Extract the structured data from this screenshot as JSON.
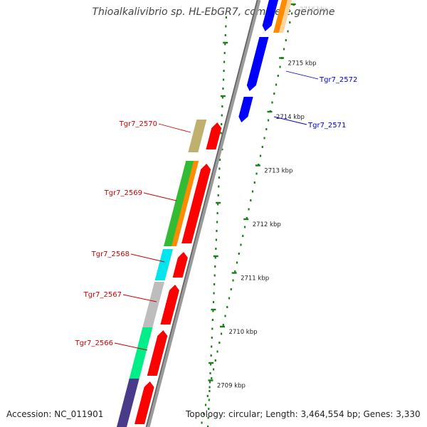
{
  "title": "Thioalkalivibrio sp. HL-EbGR7, complete genome",
  "footer": {
    "accession": "Accession: NC_011901",
    "summary": "Topology: circular; Length: 3,464,554 bp; Genes: 3,330"
  },
  "colors": {
    "backbone": "#8a8a8a",
    "tick": "#1a7f1a",
    "forward_gene": "#ff0000",
    "reverse_gene": "#0000ff",
    "forward_label": "#cc0000",
    "reverse_label": "#0000cc"
  },
  "kbp_ticks": [
    "2716 kbp",
    "2715 kbp",
    "2714 kbp",
    "2713 kbp",
    "2712 kbp",
    "2711 kbp",
    "2710 kbp",
    "2709 kbp"
  ],
  "forward_genes": [
    {
      "label": "Tgr7_2570",
      "color": "#c0b070"
    },
    {
      "label": "Tgr7_2569",
      "color": "#33bb33"
    },
    {
      "label": "Tgr7_2568",
      "color": "#00e5ee"
    },
    {
      "label": "Tgr7_2567",
      "color": "#bdbdbd"
    },
    {
      "label": "Tgr7_2566",
      "color": "#00ee88"
    },
    {
      "label": "",
      "color": "#4a3a8a"
    }
  ],
  "reverse_genes": [
    {
      "label": "Tgr7_2572"
    },
    {
      "label": "Tgr7_2571"
    }
  ]
}
